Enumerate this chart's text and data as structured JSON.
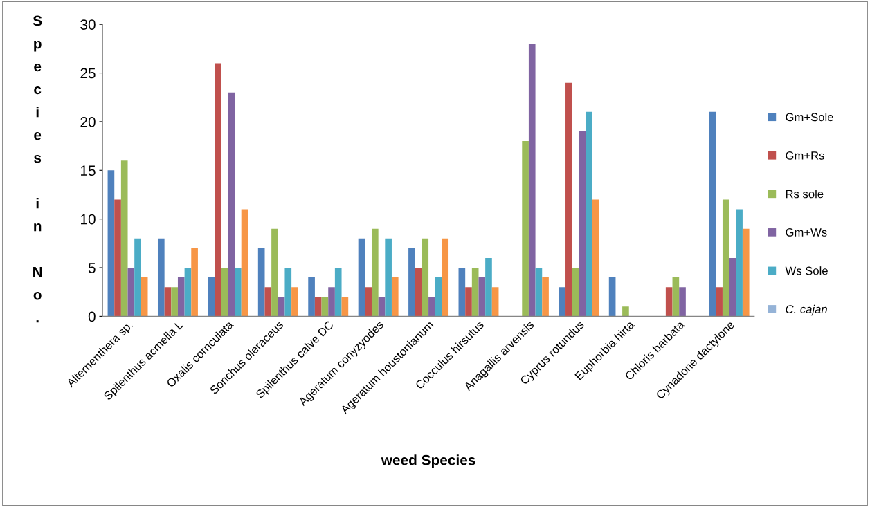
{
  "chart_data": {
    "type": "bar",
    "xlabel": "weed Species",
    "ylabel": "Species in No.",
    "categories": [
      "Alternenthera sp.",
      "Spilenthus acmella L",
      "Oxalis cornculata",
      "Sonchus oleraceus",
      "Spilenthus calve DC",
      "Ageratum conyzyodes",
      "Ageratum houstonianum",
      "Cocculus hirsutus",
      "Anagallis arvensis",
      "Cyprus rotundus",
      "Euphorbia hirta",
      "Chloris barbata",
      "Cynadone dactylone"
    ],
    "series": [
      {
        "name": "Gm+Sole",
        "color": "#4f81bd",
        "values": [
          15,
          8,
          4,
          7,
          4,
          8,
          7,
          5,
          0,
          3,
          4,
          0,
          21
        ]
      },
      {
        "name": "Gm+Rs",
        "color": "#c0504d",
        "values": [
          12,
          3,
          26,
          3,
          2,
          3,
          5,
          3,
          0,
          24,
          0,
          3,
          3
        ]
      },
      {
        "name": "Rs sole",
        "color": "#9bbb59",
        "values": [
          16,
          3,
          5,
          9,
          2,
          9,
          8,
          5,
          18,
          5,
          1,
          4,
          12
        ]
      },
      {
        "name": "Gm+Ws",
        "color": "#8064a2",
        "values": [
          5,
          4,
          23,
          2,
          3,
          2,
          2,
          4,
          28,
          19,
          0,
          3,
          6
        ]
      },
      {
        "name": "Ws Sole",
        "color": "#4bacc6",
        "values": [
          8,
          5,
          5,
          5,
          5,
          8,
          4,
          6,
          5,
          21,
          0,
          0,
          11
        ]
      },
      {
        "color": "#f79646",
        "values": [
          4,
          7,
          11,
          3,
          2,
          4,
          8,
          3,
          4,
          12,
          0,
          0,
          9
        ]
      },
      {
        "name": "C. cajan",
        "color": "#95b3d7",
        "values": [
          null,
          null,
          null,
          null,
          null,
          null,
          null,
          null,
          null,
          null,
          null,
          null,
          null
        ]
      }
    ],
    "ylim": [
      0,
      30
    ],
    "yticks": [
      0,
      5,
      10,
      15,
      20,
      25,
      30
    ],
    "grid": false,
    "legend": "right"
  }
}
